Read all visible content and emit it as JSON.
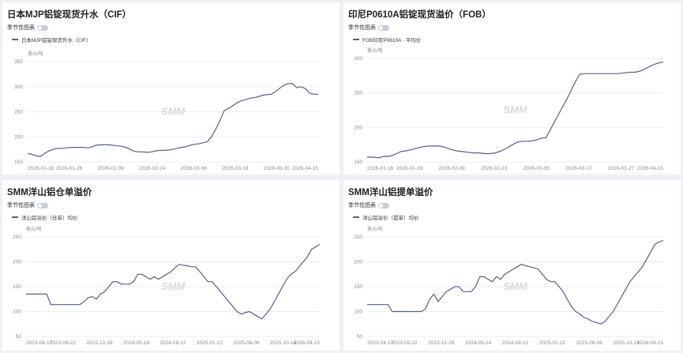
{
  "colors": {
    "line": "#5a5e8c",
    "grid": "#e6e6e6",
    "axis_text": "#888888",
    "watermark": "#d9d9d9"
  },
  "watermark_text": "SMM",
  "toggle_label": "季节性图表",
  "chart_data": [
    {
      "type": "line",
      "title": "日本MJP铝锭现货升水（CIF）",
      "legend": "日本MJP铝锭现货升水（CIF）",
      "ylabel": "美元/吨",
      "ylim": [
        150,
        350
      ],
      "yticks": [
        150,
        200,
        250,
        300,
        350
      ],
      "xticks": [
        "2026-01-16",
        "2026-01-26",
        "2026-02-09",
        "2026-02-24",
        "2026-03-06",
        "2026-03-18",
        "2026-03-30",
        "2026-04-15"
      ],
      "x": [
        0,
        1,
        2,
        3,
        4,
        5,
        6,
        7,
        8,
        9,
        10,
        11,
        12,
        13,
        14,
        15,
        16,
        17,
        18,
        19,
        20,
        21,
        22,
        23,
        24,
        25,
        26,
        27,
        28,
        29,
        30,
        31,
        32,
        33,
        34,
        35,
        36,
        37,
        38,
        39,
        40,
        41,
        42,
        43,
        44,
        45,
        46,
        47,
        48,
        49,
        50,
        51,
        52,
        53,
        54,
        55,
        56,
        57,
        58,
        59,
        60,
        61,
        62,
        63,
        64,
        65
      ],
      "values": [
        167,
        165,
        162,
        161,
        167,
        172,
        175,
        177,
        177,
        178,
        179,
        179,
        179,
        179,
        178,
        180,
        183,
        184,
        184,
        184,
        183,
        182,
        181,
        179,
        175,
        171,
        170,
        170,
        169,
        170,
        172,
        173,
        173,
        174,
        175,
        177,
        179,
        180,
        183,
        185,
        186,
        188,
        190,
        200,
        215,
        232,
        252,
        257,
        262,
        268,
        272,
        274,
        277,
        278,
        280,
        283,
        284,
        285,
        290,
        297,
        303,
        306,
        306,
        298,
        300,
        296
      ],
      "tail": [
        287,
        285,
        285
      ]
    },
    {
      "type": "line",
      "title": "印尼P0610A铝锭现货溢价（FOB）",
      "legend": "FOB印尼P0610A - 平均价",
      "ylabel": "美元/吨",
      "ylim": [
        150,
        300
      ],
      "yticks": [
        150,
        200,
        250,
        300
      ],
      "xticks": [
        "2026-01-16",
        "2026-01-28",
        "2026-02-09",
        "2026-02-23",
        "2026-03-05",
        "2026-03-17",
        "2026-03-27",
        "2026-04-15"
      ],
      "values": [
        157,
        157,
        156,
        158,
        158,
        161,
        165,
        166,
        168,
        170,
        172,
        173,
        173,
        173,
        171,
        168,
        166,
        165,
        164,
        163,
        163,
        162,
        162,
        163,
        166,
        170,
        175,
        179,
        180,
        180,
        181,
        184,
        185,
        200,
        215,
        230,
        245,
        262,
        277,
        278,
        278,
        278,
        278,
        278,
        278,
        278,
        279,
        280,
        280,
        282,
        286,
        290,
        293,
        295
      ]
    },
    {
      "type": "line",
      "title": "SMM洋山铝仓单溢价",
      "legend": "洋山铝溢价（仓单）均价",
      "ylabel": "美元/吨",
      "ylim": [
        50,
        250
      ],
      "yticks": [
        50,
        100,
        150,
        200,
        250
      ],
      "xticks": [
        "2023-04-17",
        "2023-09-22",
        "2023-12-28",
        "2024-05-14",
        "2024-09-12",
        "2025-01-22",
        "2025-06-06",
        "2025-10-14",
        "2026-04-15"
      ],
      "values": [
        135,
        135,
        135,
        135,
        135,
        135,
        114,
        114,
        114,
        114,
        114,
        114,
        114,
        114,
        120,
        128,
        130,
        125,
        135,
        140,
        150,
        160,
        160,
        155,
        155,
        155,
        160,
        175,
        175,
        170,
        165,
        170,
        165,
        170,
        175,
        180,
        188,
        195,
        193,
        192,
        190,
        190,
        180,
        170,
        160,
        160,
        150,
        140,
        130,
        120,
        110,
        100,
        95,
        98,
        100,
        95,
        90,
        85,
        95,
        105,
        120,
        135,
        150,
        165,
        175,
        180,
        190,
        200,
        210,
        225,
        230,
        235
      ]
    },
    {
      "type": "line",
      "title": "SMM洋山铝提单溢价",
      "legend": "洋山铝溢价（提单）均价",
      "ylabel": "美元/吨",
      "ylim": [
        50,
        250
      ],
      "yticks": [
        50,
        100,
        150,
        200,
        250
      ],
      "xticks": [
        "2023-04-17",
        "2023-09-22",
        "2023-12-28",
        "2024-05-14",
        "2024-09-12",
        "2025-01-22",
        "2025-06-06",
        "2025-10-14",
        "2026-04-15"
      ],
      "values": [
        114,
        114,
        114,
        114,
        114,
        114,
        100,
        100,
        100,
        100,
        100,
        100,
        100,
        100,
        105,
        125,
        135,
        120,
        130,
        140,
        145,
        150,
        150,
        140,
        140,
        140,
        150,
        170,
        170,
        165,
        160,
        170,
        165,
        175,
        180,
        185,
        190,
        195,
        192,
        190,
        188,
        185,
        175,
        165,
        160,
        160,
        150,
        140,
        125,
        110,
        100,
        95,
        88,
        85,
        80,
        78,
        75,
        80,
        90,
        100,
        115,
        130,
        145,
        160,
        170,
        180,
        190,
        205,
        220,
        235,
        240,
        243
      ]
    }
  ]
}
